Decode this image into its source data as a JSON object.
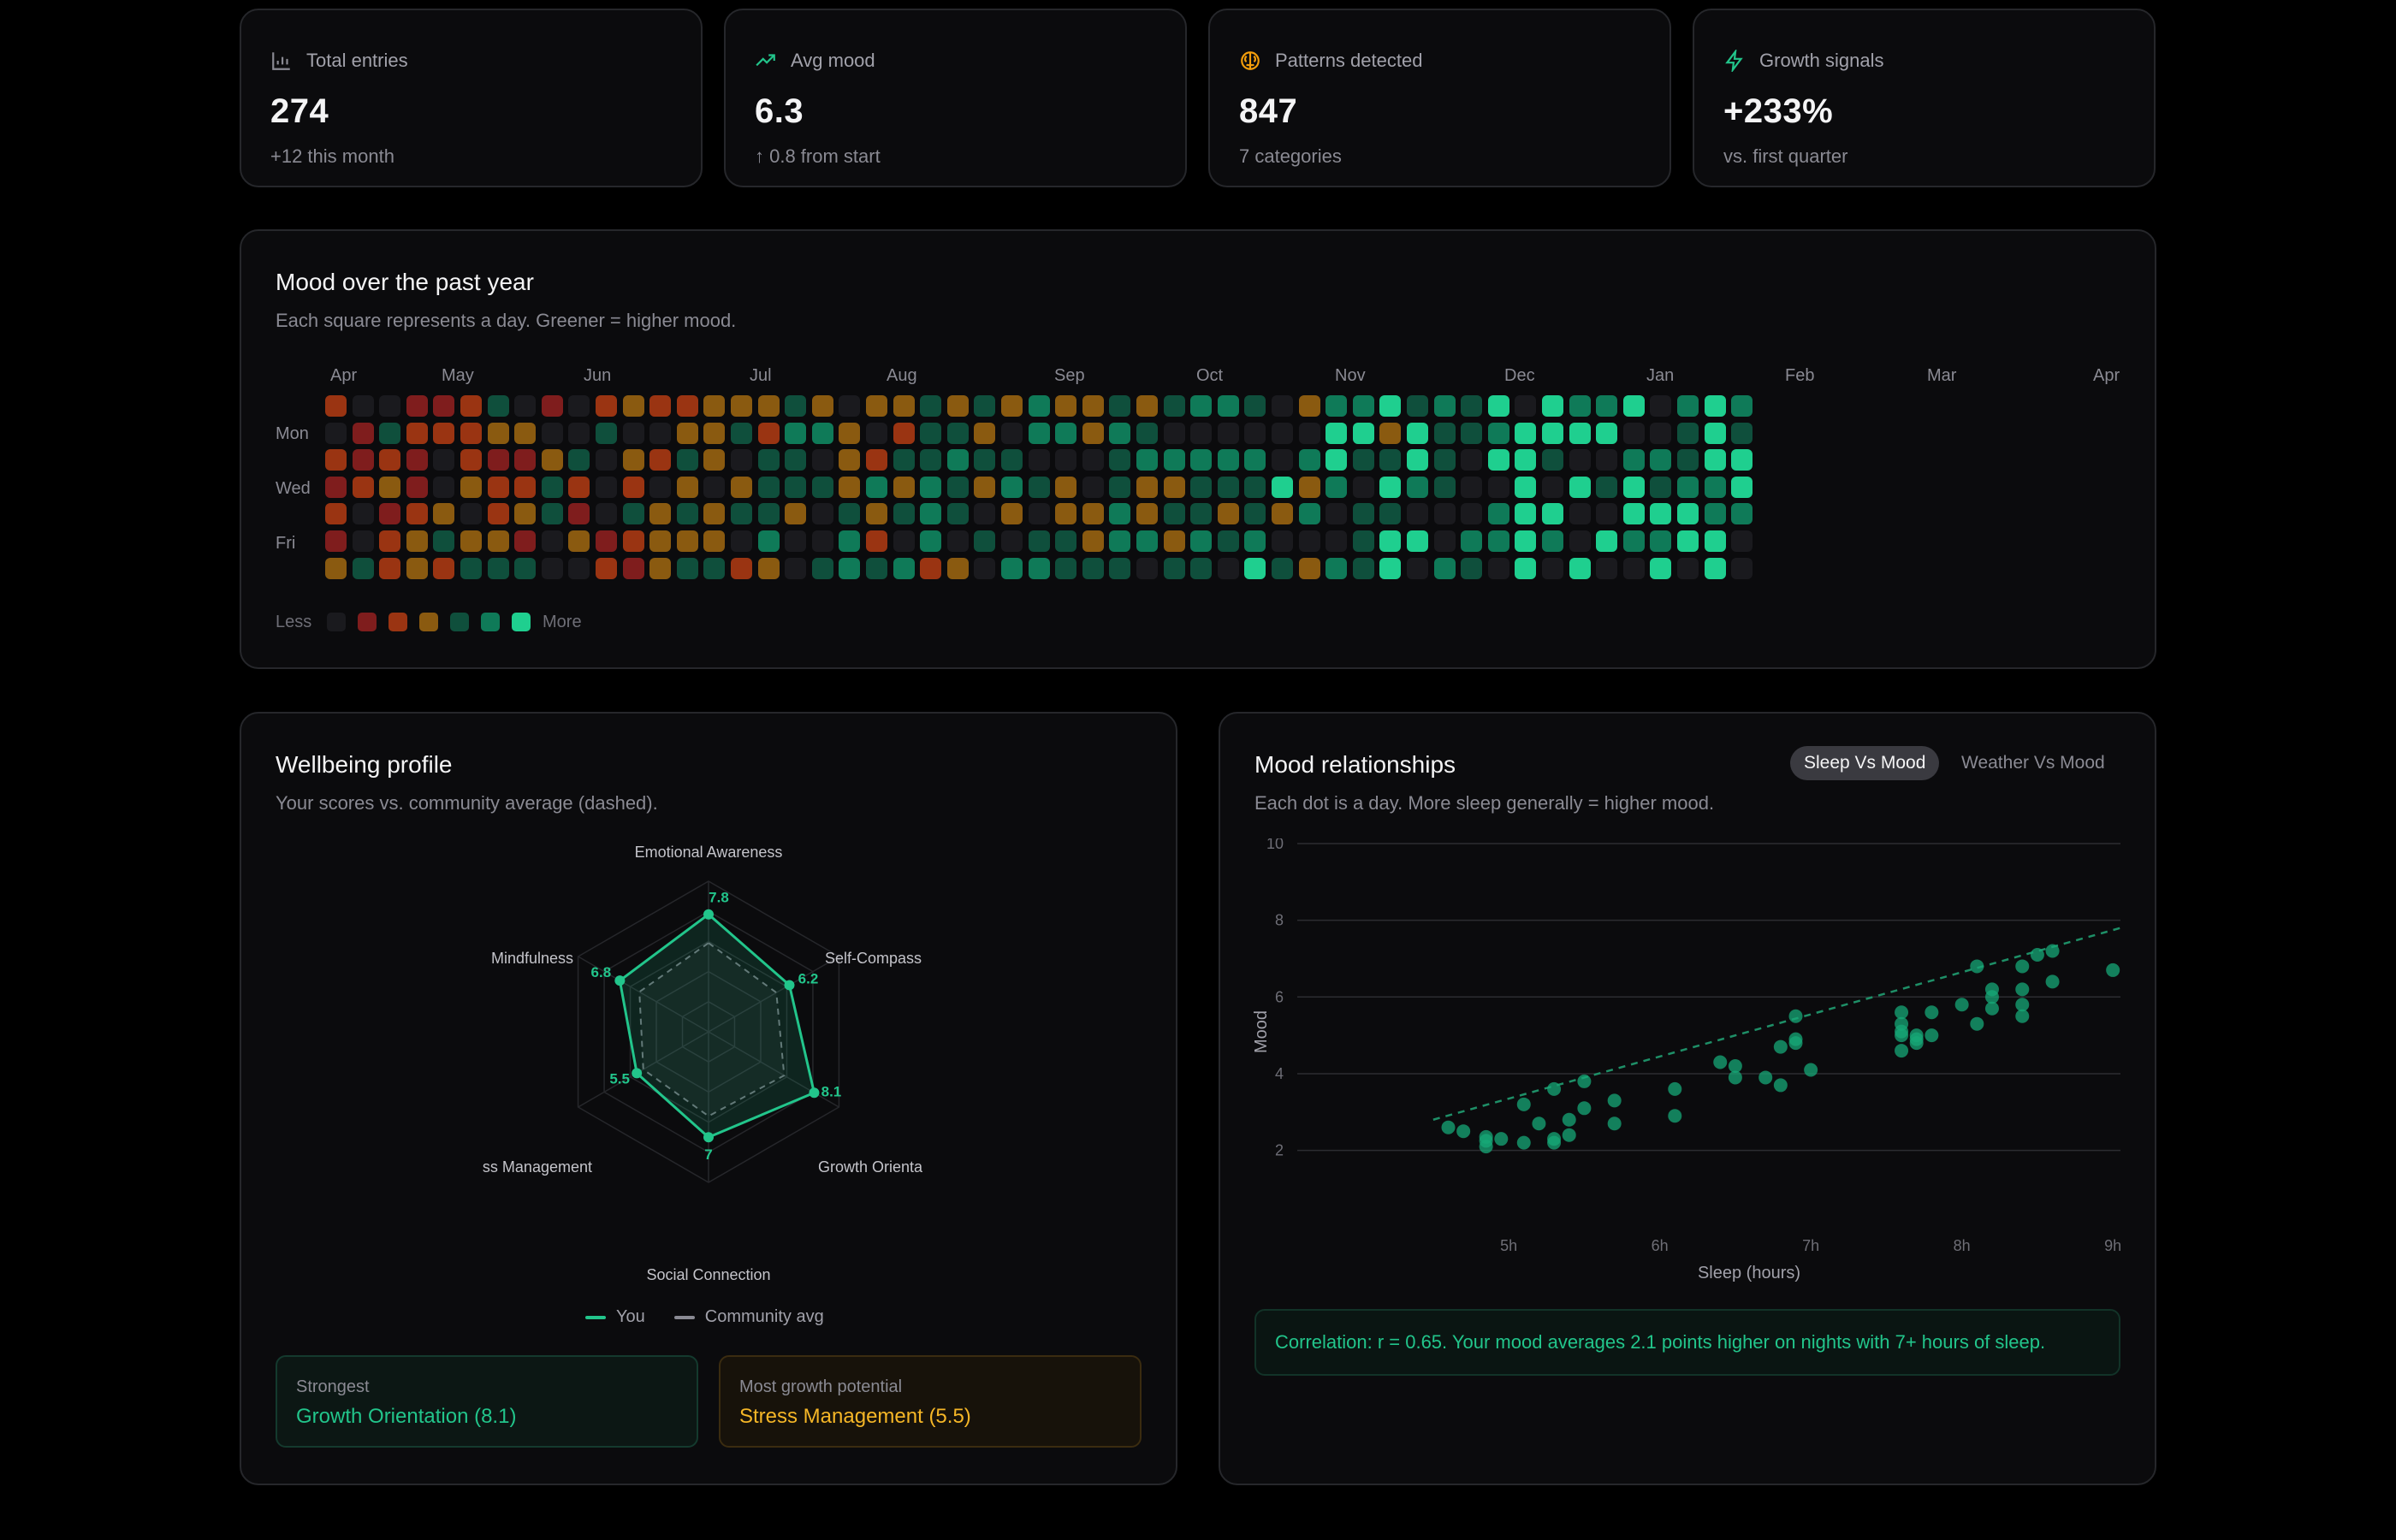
{
  "stats": [
    {
      "label": "Total entries",
      "icon": "bar-chart-icon",
      "value": "274",
      "sub": "+12 this month",
      "icon_color": "#8a8a93"
    },
    {
      "label": "Avg mood",
      "icon": "trending-up-icon",
      "value": "6.3",
      "sub": "↑ 0.8 from start",
      "icon_color": "#22c58b"
    },
    {
      "label": "Patterns detected",
      "icon": "brain-icon",
      "value": "847",
      "sub": "7 categories",
      "icon_color": "#f59e0b"
    },
    {
      "label": "Growth signals",
      "icon": "lightning-icon",
      "value": "+233%",
      "sub": "vs. first quarter",
      "icon_color": "#22c58b"
    }
  ],
  "heatmap": {
    "title": "Mood over the past year",
    "subtitle": "Each square represents a day. Greener = higher mood.",
    "months": [
      "Apr",
      "May",
      "Jun",
      "Jul",
      "Aug",
      "Sep",
      "Oct",
      "Nov",
      "Dec",
      "Jan",
      "Feb",
      "Mar",
      "Apr"
    ],
    "days": [
      "Mon",
      "Wed",
      "Fri"
    ],
    "legend_less": "Less",
    "legend_more": "More",
    "colors": [
      "#1a1a1e",
      "#7f1d1d",
      "#9a3412",
      "#8a5a10",
      "#0f4f3c",
      "#0f7a58",
      "#1fcf8f"
    ],
    "weeks_filled": 53
  },
  "wellbeing": {
    "title": "Wellbeing profile",
    "subtitle": "Your scores vs. community average (dashed).",
    "axes": [
      {
        "label": "Emotional Awareness",
        "you": 7.8,
        "community": 5.9
      },
      {
        "label": "Self-Compass",
        "you": 6.2,
        "community": 5.2
      },
      {
        "label": "Growth Orienta",
        "you": 8.1,
        "community": 5.8
      },
      {
        "label": "Social Connection",
        "you": 7,
        "community": 5.6
      },
      {
        "label": "ss Management",
        "you": 5.5,
        "community": 5.0
      },
      {
        "label": "Mindfulness",
        "you": 6.8,
        "community": 5.3
      }
    ],
    "max": 10,
    "value_labels": [
      "7.8",
      "6.2",
      "8.1",
      "7",
      "5.5",
      "6.8"
    ],
    "legend_you": "You",
    "legend_community": "Community avg",
    "strongest_label": "Strongest",
    "strongest_value": "Growth Orientation (8.1)",
    "growth_label": "Most growth potential",
    "growth_value": "Stress Management (5.5)"
  },
  "relationships": {
    "title": "Mood relationships",
    "subtitle": "Each dot is a day. More sleep generally = higher mood.",
    "tabs": [
      "Sleep Vs Mood",
      "Weather Vs Mood"
    ],
    "active_tab": 0,
    "correlation": "Correlation: r = 0.65. Your mood averages 2.1 points higher on nights with 7+ hours of sleep."
  },
  "chart_data": {
    "type": "scatter",
    "xlabel": "Sleep (hours)",
    "ylabel": "Mood",
    "x_ticks": [
      "5h",
      "6h",
      "7h",
      "8h",
      "9h"
    ],
    "y_ticks": [
      "2",
      "4",
      "6",
      "8",
      "10"
    ],
    "xlim": [
      3.6,
      9.05
    ],
    "ylim": [
      1.3,
      10
    ],
    "trend": {
      "x0": 4.5,
      "y0": 2.8,
      "x1": 9.05,
      "y1": 7.8
    },
    "points": [
      [
        4.6,
        2.6
      ],
      [
        4.7,
        2.5
      ],
      [
        4.85,
        2.1
      ],
      [
        4.85,
        2.25
      ],
      [
        4.85,
        2.35
      ],
      [
        4.95,
        2.3
      ],
      [
        5.1,
        3.2
      ],
      [
        5.1,
        2.2
      ],
      [
        5.2,
        2.7
      ],
      [
        5.3,
        3.6
      ],
      [
        5.3,
        2.3
      ],
      [
        5.3,
        2.2
      ],
      [
        5.4,
        2.8
      ],
      [
        5.4,
        2.4
      ],
      [
        5.5,
        3.8
      ],
      [
        5.5,
        3.1
      ],
      [
        5.7,
        3.3
      ],
      [
        5.7,
        2.7
      ],
      [
        6.1,
        3.6
      ],
      [
        6.1,
        2.9
      ],
      [
        6.4,
        4.3
      ],
      [
        6.5,
        4.2
      ],
      [
        6.5,
        3.9
      ],
      [
        6.7,
        3.9
      ],
      [
        6.8,
        3.7
      ],
      [
        6.8,
        4.7
      ],
      [
        6.9,
        4.8
      ],
      [
        6.9,
        4.9
      ],
      [
        6.9,
        5.5
      ],
      [
        7.0,
        4.1
      ],
      [
        7.6,
        5.6
      ],
      [
        7.6,
        5.3
      ],
      [
        7.6,
        5.1
      ],
      [
        7.6,
        5.0
      ],
      [
        7.6,
        4.6
      ],
      [
        7.7,
        5.0
      ],
      [
        7.7,
        4.9
      ],
      [
        7.7,
        4.8
      ],
      [
        7.8,
        5.6
      ],
      [
        7.8,
        5.0
      ],
      [
        8.0,
        5.8
      ],
      [
        8.1,
        6.8
      ],
      [
        8.1,
        5.3
      ],
      [
        8.2,
        6.2
      ],
      [
        8.2,
        6.0
      ],
      [
        8.2,
        5.7
      ],
      [
        8.4,
        6.8
      ],
      [
        8.4,
        6.2
      ],
      [
        8.4,
        5.8
      ],
      [
        8.4,
        5.5
      ],
      [
        8.5,
        7.1
      ],
      [
        8.6,
        7.2
      ],
      [
        8.6,
        6.4
      ],
      [
        9.0,
        6.7
      ]
    ]
  }
}
